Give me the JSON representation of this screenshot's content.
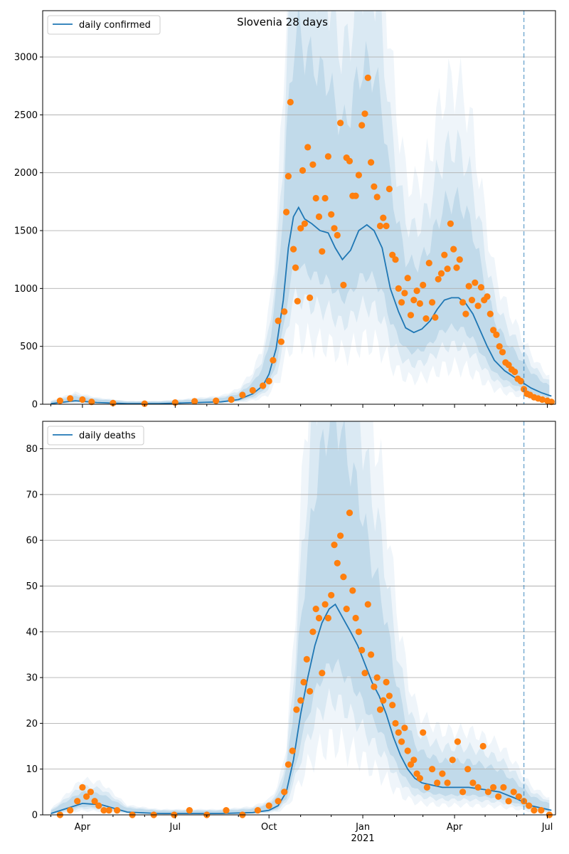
{
  "chart_data": [
    {
      "type": "line",
      "title": "Slovenia 28 days",
      "xlabel": "",
      "ylabel": "",
      "ylim": [
        0,
        3400
      ],
      "yticks": [
        0,
        500,
        1000,
        1500,
        2000,
        2500,
        3000
      ],
      "grid": "y",
      "legend": {
        "position": "top-left",
        "entries": [
          "daily confirmed"
        ]
      },
      "forecast_start": "2021-06-08",
      "series": [
        {
          "name": "daily confirmed",
          "kind": "model-line",
          "x": [
            "2020-03-01",
            "2020-03-25",
            "2020-04-15",
            "2020-05-15",
            "2020-06-15",
            "2020-07-15",
            "2020-08-15",
            "2020-09-01",
            "2020-09-15",
            "2020-09-25",
            "2020-10-01",
            "2020-10-08",
            "2020-10-15",
            "2020-10-20",
            "2020-10-25",
            "2020-10-30",
            "2020-11-05",
            "2020-11-12",
            "2020-11-20",
            "2020-11-28",
            "2020-12-05",
            "2020-12-12",
            "2020-12-20",
            "2020-12-28",
            "2021-01-05",
            "2021-01-12",
            "2021-01-20",
            "2021-01-28",
            "2021-02-05",
            "2021-02-12",
            "2021-02-20",
            "2021-02-28",
            "2021-03-08",
            "2021-03-15",
            "2021-03-22",
            "2021-03-29",
            "2021-04-05",
            "2021-04-12",
            "2021-04-19",
            "2021-04-26",
            "2021-05-03",
            "2021-05-10",
            "2021-05-20",
            "2021-06-01",
            "2021-06-08",
            "2021-06-15",
            "2021-06-25",
            "2021-07-05"
          ],
          "y": [
            5,
            30,
            15,
            5,
            5,
            12,
            20,
            40,
            90,
            160,
            260,
            480,
            900,
            1350,
            1620,
            1700,
            1600,
            1560,
            1500,
            1480,
            1350,
            1250,
            1330,
            1500,
            1550,
            1500,
            1350,
            1000,
            800,
            660,
            620,
            650,
            720,
            820,
            900,
            920,
            920,
            870,
            780,
            640,
            500,
            380,
            290,
            220,
            180,
            140,
            100,
            70
          ]
        },
        {
          "name": "",
          "kind": "observed",
          "x": [
            "2020-03-10",
            "2020-03-20",
            "2020-04-01",
            "2020-04-10",
            "2020-05-01",
            "2020-06-01",
            "2020-07-01",
            "2020-07-20",
            "2020-08-10",
            "2020-08-25",
            "2020-09-05",
            "2020-09-15",
            "2020-09-25",
            "2020-10-01",
            "2020-10-05",
            "2020-10-10",
            "2020-10-13",
            "2020-10-16",
            "2020-10-18",
            "2020-10-20",
            "2020-10-22",
            "2020-10-25",
            "2020-10-27",
            "2020-10-29",
            "2020-11-01",
            "2020-11-03",
            "2020-11-05",
            "2020-11-08",
            "2020-11-10",
            "2020-11-13",
            "2020-11-16",
            "2020-11-19",
            "2020-11-22",
            "2020-11-25",
            "2020-11-28",
            "2020-12-01",
            "2020-12-04",
            "2020-12-07",
            "2020-12-10",
            "2020-12-13",
            "2020-12-16",
            "2020-12-19",
            "2020-12-22",
            "2020-12-25",
            "2020-12-28",
            "2020-12-31",
            "2021-01-03",
            "2021-01-06",
            "2021-01-09",
            "2021-01-12",
            "2021-01-15",
            "2021-01-18",
            "2021-01-21",
            "2021-01-24",
            "2021-01-27",
            "2021-01-30",
            "2021-02-02",
            "2021-02-05",
            "2021-02-08",
            "2021-02-11",
            "2021-02-14",
            "2021-02-17",
            "2021-02-20",
            "2021-02-23",
            "2021-02-26",
            "2021-03-01",
            "2021-03-04",
            "2021-03-07",
            "2021-03-10",
            "2021-03-13",
            "2021-03-16",
            "2021-03-19",
            "2021-03-22",
            "2021-03-25",
            "2021-03-28",
            "2021-03-31",
            "2021-04-03",
            "2021-04-06",
            "2021-04-09",
            "2021-04-12",
            "2021-04-15",
            "2021-04-18",
            "2021-04-21",
            "2021-04-24",
            "2021-04-27",
            "2021-04-30",
            "2021-05-03",
            "2021-05-06",
            "2021-05-09",
            "2021-05-12",
            "2021-05-15",
            "2021-05-18",
            "2021-05-21",
            "2021-05-24",
            "2021-05-27",
            "2021-05-30",
            "2021-06-02",
            "2021-06-05",
            "2021-06-08",
            "2021-06-11",
            "2021-06-14",
            "2021-06-18",
            "2021-06-22",
            "2021-06-26",
            "2021-07-01",
            "2021-07-05"
          ],
          "y": [
            30,
            50,
            40,
            20,
            10,
            5,
            15,
            25,
            30,
            40,
            80,
            120,
            160,
            200,
            380,
            720,
            540,
            800,
            1660,
            1970,
            2610,
            1340,
            1180,
            890,
            1520,
            2020,
            1560,
            2220,
            920,
            2070,
            1780,
            1620,
            1320,
            1780,
            2140,
            1640,
            1520,
            1460,
            2430,
            1030,
            2130,
            2100,
            1800,
            1800,
            1980,
            2410,
            2510,
            2820,
            2090,
            1880,
            1790,
            1540,
            1610,
            1540,
            1860,
            1290,
            1250,
            1000,
            880,
            960,
            1090,
            770,
            900,
            980,
            870,
            1030,
            740,
            1220,
            880,
            750,
            1080,
            1130,
            1290,
            1170,
            1560,
            1340,
            1180,
            1250,
            880,
            780,
            1020,
            900,
            1050,
            850,
            1010,
            900,
            930,
            780,
            640,
            600,
            500,
            450,
            360,
            340,
            300,
            280,
            220,
            200,
            130,
            90,
            80,
            60,
            50,
            40,
            30,
            20
          ]
        }
      ]
    },
    {
      "type": "line",
      "title": "",
      "xlabel": "",
      "ylabel": "",
      "ylim": [
        0,
        86
      ],
      "yticks": [
        0,
        10,
        20,
        30,
        40,
        50,
        60,
        70,
        80
      ],
      "xticks": [
        "Apr",
        "Jul",
        "Oct",
        "Jan",
        "Apr",
        "Jul"
      ],
      "xticks_dates": [
        "2020-04-01",
        "2020-07-01",
        "2020-10-01",
        "2021-01-01",
        "2021-04-01",
        "2021-07-01"
      ],
      "year_label": "2021",
      "grid": "y",
      "legend": {
        "position": "top-left",
        "entries": [
          "daily deaths"
        ]
      },
      "forecast_start": "2021-06-08",
      "series": [
        {
          "name": "daily deaths",
          "kind": "model-line",
          "x": [
            "2020-03-01",
            "2020-04-01",
            "2020-04-20",
            "2020-05-15",
            "2020-06-15",
            "2020-07-15",
            "2020-08-15",
            "2020-09-15",
            "2020-10-01",
            "2020-10-10",
            "2020-10-18",
            "2020-10-25",
            "2020-11-01",
            "2020-11-08",
            "2020-11-15",
            "2020-11-22",
            "2020-11-29",
            "2020-12-05",
            "2020-12-10",
            "2020-12-15",
            "2020-12-20",
            "2020-12-27",
            "2021-01-03",
            "2021-01-10",
            "2021-01-17",
            "2021-01-24",
            "2021-01-31",
            "2021-02-07",
            "2021-02-14",
            "2021-02-21",
            "2021-02-28",
            "2021-03-10",
            "2021-03-20",
            "2021-04-01",
            "2021-04-15",
            "2021-05-01",
            "2021-05-15",
            "2021-06-01",
            "2021-06-15",
            "2021-07-05"
          ],
          "y": [
            0.3,
            2.5,
            2.2,
            0.6,
            0.3,
            0.3,
            0.3,
            0.5,
            1,
            2,
            5,
            12,
            22,
            30,
            37,
            42,
            45,
            46,
            44,
            42,
            40,
            37,
            33,
            29,
            26,
            22,
            17,
            13,
            10,
            8,
            7,
            6.5,
            6,
            6,
            6,
            5.5,
            5,
            3.5,
            2,
            1
          ]
        },
        {
          "name": "",
          "kind": "observed",
          "x": [
            "2020-03-10",
            "2020-03-20",
            "2020-03-27",
            "2020-04-01",
            "2020-04-05",
            "2020-04-09",
            "2020-04-13",
            "2020-04-17",
            "2020-04-22",
            "2020-04-27",
            "2020-05-05",
            "2020-05-20",
            "2020-06-10",
            "2020-06-30",
            "2020-07-15",
            "2020-08-01",
            "2020-08-20",
            "2020-09-05",
            "2020-09-20",
            "2020-10-01",
            "2020-10-10",
            "2020-10-16",
            "2020-10-20",
            "2020-10-24",
            "2020-10-28",
            "2020-11-01",
            "2020-11-04",
            "2020-11-07",
            "2020-11-10",
            "2020-11-13",
            "2020-11-16",
            "2020-11-19",
            "2020-11-22",
            "2020-11-25",
            "2020-11-28",
            "2020-12-01",
            "2020-12-04",
            "2020-12-07",
            "2020-12-10",
            "2020-12-13",
            "2020-12-16",
            "2020-12-19",
            "2020-12-22",
            "2020-12-25",
            "2020-12-28",
            "2020-12-31",
            "2021-01-03",
            "2021-01-06",
            "2021-01-09",
            "2021-01-12",
            "2021-01-15",
            "2021-01-18",
            "2021-01-21",
            "2021-01-24",
            "2021-01-27",
            "2021-01-30",
            "2021-02-02",
            "2021-02-05",
            "2021-02-08",
            "2021-02-11",
            "2021-02-14",
            "2021-02-17",
            "2021-02-20",
            "2021-02-23",
            "2021-02-26",
            "2021-03-01",
            "2021-03-05",
            "2021-03-10",
            "2021-03-15",
            "2021-03-20",
            "2021-03-25",
            "2021-03-30",
            "2021-04-04",
            "2021-04-09",
            "2021-04-14",
            "2021-04-19",
            "2021-04-24",
            "2021-04-29",
            "2021-05-04",
            "2021-05-09",
            "2021-05-14",
            "2021-05-19",
            "2021-05-24",
            "2021-05-29",
            "2021-06-03",
            "2021-06-08",
            "2021-06-13",
            "2021-06-18",
            "2021-06-25",
            "2021-07-03"
          ],
          "y": [
            0,
            1,
            3,
            6,
            4,
            5,
            3,
            2,
            1,
            1,
            1,
            0,
            0,
            0,
            1,
            0,
            1,
            0,
            1,
            2,
            3,
            5,
            11,
            14,
            23,
            25,
            29,
            34,
            27,
            40,
            45,
            43,
            31,
            46,
            43,
            48,
            59,
            55,
            61,
            52,
            45,
            66,
            49,
            43,
            40,
            36,
            31,
            46,
            35,
            28,
            30,
            23,
            25,
            29,
            26,
            24,
            20,
            18,
            16,
            19,
            14,
            11,
            12,
            9,
            8,
            18,
            6,
            10,
            7,
            9,
            7,
            12,
            16,
            5,
            10,
            7,
            6,
            15,
            5,
            6,
            4,
            6,
            3,
            5,
            4,
            3,
            2,
            1,
            1,
            0
          ]
        }
      ]
    }
  ]
}
